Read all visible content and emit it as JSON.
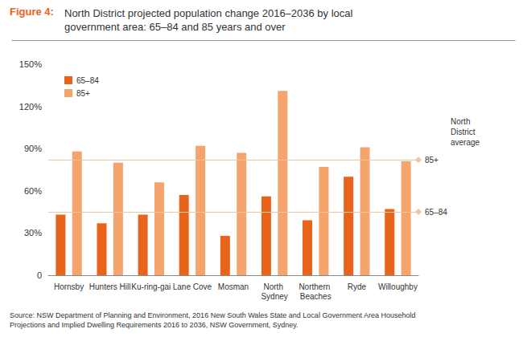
{
  "chart_data": {
    "type": "bar",
    "figure_label": "Figure 4:",
    "title": "North District projected population change 2016–2036 by local government area: 65–84 and 85 years and over",
    "categories": [
      "Hornsby",
      "Hunters Hill",
      "Ku-ring-gai",
      "Lane Cove",
      "Mosman",
      "North Sydney",
      "Northern Beaches",
      "Ryde",
      "Willoughby"
    ],
    "series": [
      {
        "name": "65–84",
        "color": "#e8641b",
        "values": [
          43,
          37,
          43,
          57,
          28,
          56,
          39,
          70,
          47
        ]
      },
      {
        "name": "85+",
        "color": "#f5a46e",
        "values": [
          88,
          80,
          66,
          92,
          87,
          131,
          77,
          91,
          81
        ]
      }
    ],
    "ylim": [
      0,
      150
    ],
    "yticks": [
      0,
      {
        "value": 30,
        "label": "30%"
      },
      {
        "value": 60,
        "label": "60%"
      },
      {
        "value": 90,
        "label": "90%"
      },
      {
        "value": 120,
        "label": "120%"
      },
      {
        "value": 150,
        "label": "150%"
      }
    ],
    "grid": false,
    "legend": "upper left",
    "reference_lines": {
      "title": "North District average",
      "lines": [
        {
          "label": "85+",
          "value": 82
        },
        {
          "label": "65–84",
          "value": 45
        }
      ]
    },
    "source": "Source: NSW Department of Planning and Environment, 2016 New South Wales State and Local Government Area Household Projections and Implied Dwelling Requirements 2016 to 2036, NSW Government, Sydney."
  }
}
